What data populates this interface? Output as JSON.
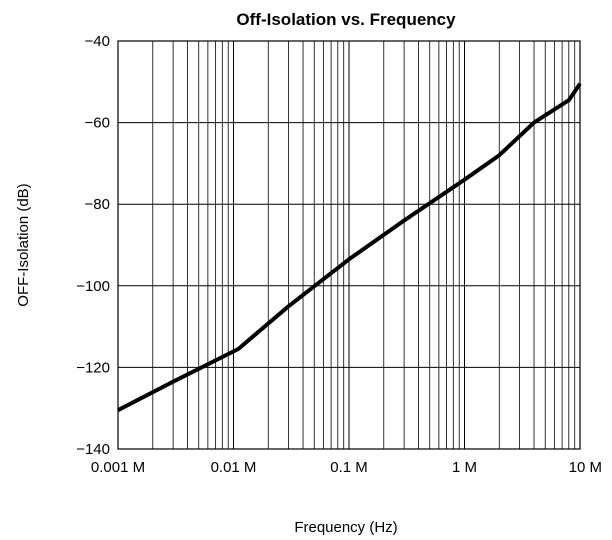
{
  "chart_data": {
    "type": "line",
    "title": "Off-Isolation vs. Frequency",
    "xlabel": "Frequency (Hz)",
    "ylabel": "OFF-Isolation (dB)",
    "x_scale": "log",
    "xlim": [
      1000,
      10000000
    ],
    "ylim": [
      -140,
      -40
    ],
    "grid": true,
    "x_ticks": [
      1000,
      10000,
      100000,
      1000000,
      10000000
    ],
    "x_tick_labels": [
      "0.001 M",
      "0.01 M",
      "0.1 M",
      "1 M",
      "10 M"
    ],
    "y_ticks": [
      -40,
      -60,
      -80,
      -100,
      -120,
      -140
    ],
    "y_tick_labels": [
      "−40",
      "−60",
      "−80",
      "−100",
      "−120",
      "−140"
    ],
    "series": [
      {
        "color": "#000000",
        "x": [
          1000,
          3000,
          11000,
          30000,
          100000,
          300000,
          1000000,
          2000000,
          4000000,
          8000000,
          10000000
        ],
        "y": [
          -130.5,
          -123.5,
          -115.5,
          -105,
          -93.5,
          -84,
          -74,
          -68,
          -60,
          -54.5,
          -50.5
        ]
      }
    ]
  }
}
